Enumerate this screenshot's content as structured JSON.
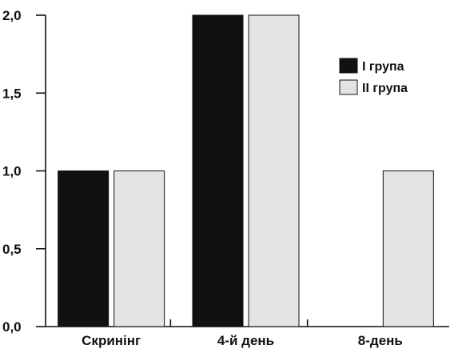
{
  "chart_data": {
    "type": "bar",
    "title": "",
    "xlabel": "",
    "ylabel": "",
    "categories": [
      "Скринінг",
      "4-й день",
      "8-день"
    ],
    "series": [
      {
        "name": "I група",
        "values": [
          1.0,
          2.0,
          0.0
        ],
        "color": "#111111"
      },
      {
        "name": "II група",
        "values": [
          1.0,
          2.0,
          1.0
        ],
        "color": "#e3e3e3"
      }
    ],
    "ylim": [
      0,
      2
    ],
    "yticks": [
      0,
      0.5,
      1,
      1.5,
      2
    ],
    "ytick_labels": [
      "0,0",
      "0,5",
      "1,0",
      "1,5",
      "2,0"
    ],
    "grid": false,
    "legend": "top-right"
  }
}
